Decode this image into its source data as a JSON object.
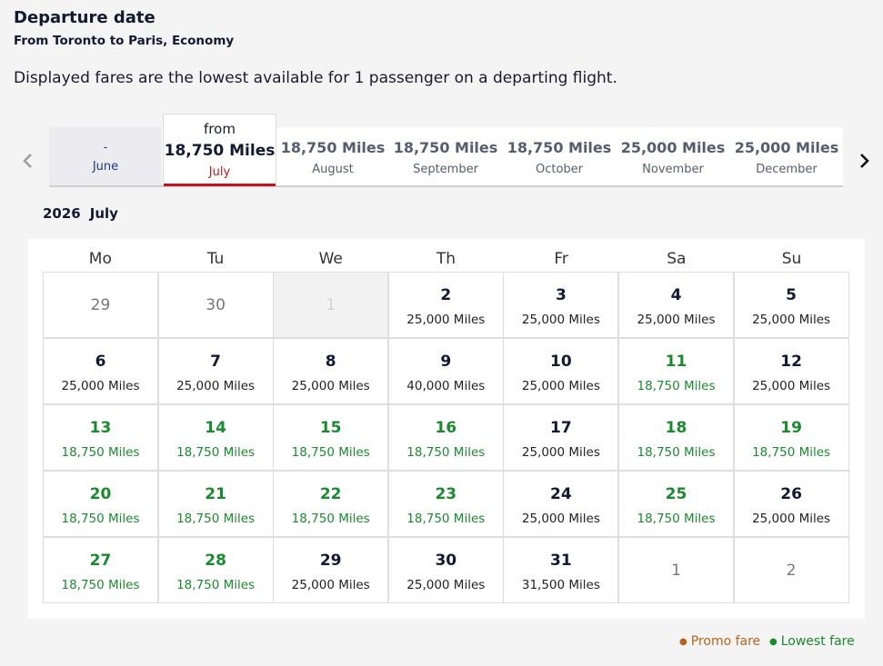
{
  "header": {
    "title": "Departure date",
    "subtitle": "From Toronto to Paris, Economy",
    "description": "Displayed fares are the lowest available for 1 passenger on a departing flight."
  },
  "icons": {
    "prev": "chevron-left-icon",
    "next": "chevron-right-icon"
  },
  "months": [
    {
      "price": "-",
      "name": "June"
    },
    {
      "from": "from",
      "price": "18,750 Miles",
      "name": "July",
      "selected": true
    },
    {
      "price": "18,750 Miles",
      "name": "August"
    },
    {
      "price": "18,750 Miles",
      "name": "September"
    },
    {
      "price": "18,750 Miles",
      "name": "October"
    },
    {
      "price": "25,000 Miles",
      "name": "November"
    },
    {
      "price": "25,000 Miles",
      "name": "December"
    }
  ],
  "calendar": {
    "year": "2026",
    "month": "July",
    "weekdays": [
      "Mo",
      "Tu",
      "We",
      "Th",
      "Fr",
      "Sa",
      "Su"
    ],
    "days": [
      {
        "day": "29",
        "miles": "",
        "state": "other"
      },
      {
        "day": "30",
        "miles": "",
        "state": "other"
      },
      {
        "day": "1",
        "miles": "",
        "state": "disabled"
      },
      {
        "day": "2",
        "miles": "25,000 Miles",
        "state": "normal"
      },
      {
        "day": "3",
        "miles": "25,000 Miles",
        "state": "normal"
      },
      {
        "day": "4",
        "miles": "25,000 Miles",
        "state": "normal"
      },
      {
        "day": "5",
        "miles": "25,000 Miles",
        "state": "normal"
      },
      {
        "day": "6",
        "miles": "25,000 Miles",
        "state": "normal"
      },
      {
        "day": "7",
        "miles": "25,000 Miles",
        "state": "normal"
      },
      {
        "day": "8",
        "miles": "25,000 Miles",
        "state": "normal"
      },
      {
        "day": "9",
        "miles": "40,000 Miles",
        "state": "normal"
      },
      {
        "day": "10",
        "miles": "25,000 Miles",
        "state": "normal"
      },
      {
        "day": "11",
        "miles": "18,750 Miles",
        "state": "low"
      },
      {
        "day": "12",
        "miles": "25,000 Miles",
        "state": "normal"
      },
      {
        "day": "13",
        "miles": "18,750 Miles",
        "state": "low"
      },
      {
        "day": "14",
        "miles": "18,750 Miles",
        "state": "low"
      },
      {
        "day": "15",
        "miles": "18,750 Miles",
        "state": "low"
      },
      {
        "day": "16",
        "miles": "18,750 Miles",
        "state": "low"
      },
      {
        "day": "17",
        "miles": "25,000 Miles",
        "state": "normal"
      },
      {
        "day": "18",
        "miles": "18,750 Miles",
        "state": "low"
      },
      {
        "day": "19",
        "miles": "18,750 Miles",
        "state": "low"
      },
      {
        "day": "20",
        "miles": "18,750 Miles",
        "state": "low"
      },
      {
        "day": "21",
        "miles": "18,750 Miles",
        "state": "low"
      },
      {
        "day": "22",
        "miles": "18,750 Miles",
        "state": "low"
      },
      {
        "day": "23",
        "miles": "18,750 Miles",
        "state": "low"
      },
      {
        "day": "24",
        "miles": "25,000 Miles",
        "state": "normal"
      },
      {
        "day": "25",
        "miles": "18,750 Miles",
        "state": "low"
      },
      {
        "day": "26",
        "miles": "25,000 Miles",
        "state": "normal"
      },
      {
        "day": "27",
        "miles": "18,750 Miles",
        "state": "low"
      },
      {
        "day": "28",
        "miles": "18,750 Miles",
        "state": "low"
      },
      {
        "day": "29",
        "miles": "25,000 Miles",
        "state": "normal"
      },
      {
        "day": "30",
        "miles": "25,000 Miles",
        "state": "normal"
      },
      {
        "day": "31",
        "miles": "31,500 Miles",
        "state": "normal"
      },
      {
        "day": "1",
        "miles": "",
        "state": "other"
      },
      {
        "day": "2",
        "miles": "",
        "state": "other"
      }
    ]
  },
  "legend": {
    "promo": "Promo fare",
    "lowest": "Lowest fare"
  },
  "colors": {
    "lowest": "#1b8a2e",
    "promo": "#b8621b",
    "selected_month": "#c0141c",
    "text_dark": "#111a33"
  }
}
